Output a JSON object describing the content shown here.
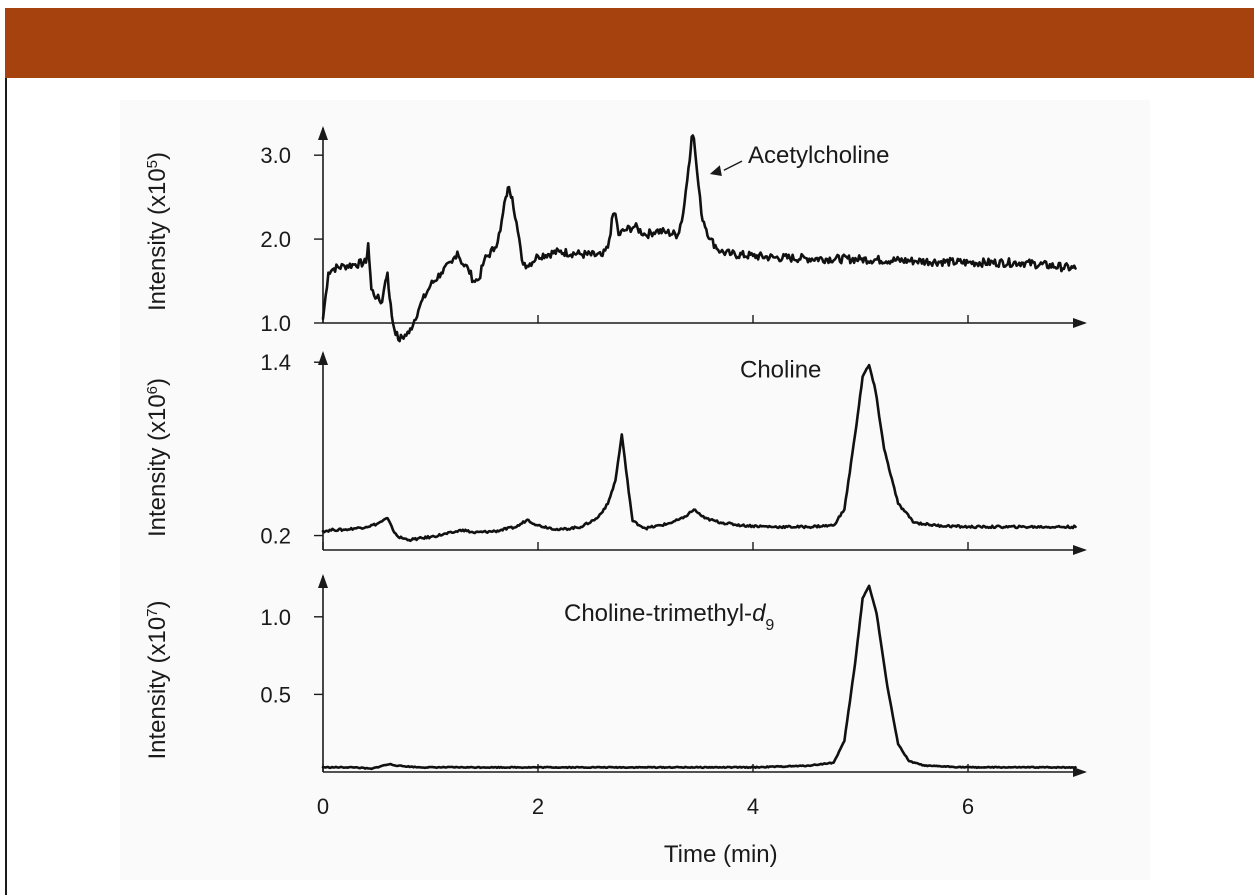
{
  "colors": {
    "header_bar": "#a5420e",
    "trace": "#111111"
  },
  "chart_data": [
    {
      "type": "line",
      "title": "",
      "xlabel": "",
      "ylabel_text": "Intensity (x10",
      "ylabel_exp": "5",
      "ylabel_close": ")",
      "xlim": [
        0,
        7
      ],
      "ylim": [
        1.0,
        3.3
      ],
      "yticks": [
        1.0,
        2.0,
        3.0
      ],
      "ytick_labels": [
        "1.0",
        "2.0",
        "3.0"
      ],
      "annotation": {
        "text": "Acetylcholine",
        "x": 3.45,
        "y": 3.25
      },
      "series": [
        {
          "x": [
            0,
            0.05,
            0.1,
            0.2,
            0.3,
            0.4,
            0.42,
            0.45,
            0.5,
            0.55,
            0.58,
            0.6,
            0.62,
            0.65,
            0.7,
            0.8,
            0.9,
            1.0,
            1.1,
            1.2,
            1.25,
            1.3,
            1.35,
            1.4,
            1.45,
            1.5,
            1.6,
            1.65,
            1.7,
            1.73,
            1.76,
            1.8,
            1.85,
            1.9,
            2.0,
            2.2,
            2.4,
            2.6,
            2.65,
            2.7,
            2.72,
            2.75,
            2.8,
            2.9,
            3.0,
            3.1,
            3.2,
            3.3,
            3.35,
            3.4,
            3.43,
            3.45,
            3.48,
            3.52,
            3.6,
            3.7,
            3.8,
            4.0,
            4.2,
            4.5,
            5.0,
            5.5,
            6.0,
            6.5,
            7.0
          ],
          "y": [
            1.05,
            1.6,
            1.65,
            1.68,
            1.7,
            1.72,
            1.95,
            1.4,
            1.3,
            1.25,
            1.5,
            1.6,
            1.3,
            1.0,
            0.8,
            0.88,
            1.2,
            1.45,
            1.6,
            1.72,
            1.85,
            1.7,
            1.65,
            1.5,
            1.52,
            1.75,
            1.9,
            2.1,
            2.5,
            2.62,
            2.5,
            2.2,
            1.75,
            1.68,
            1.8,
            1.85,
            1.82,
            1.8,
            1.9,
            2.3,
            2.3,
            2.05,
            2.1,
            2.15,
            2.05,
            2.1,
            2.08,
            2.05,
            2.3,
            2.85,
            3.22,
            3.2,
            2.8,
            2.3,
            2.0,
            1.85,
            1.82,
            1.8,
            1.78,
            1.77,
            1.76,
            1.74,
            1.72,
            1.72,
            1.65
          ]
        }
      ]
    },
    {
      "type": "line",
      "title": "",
      "xlabel": "",
      "ylabel_text": "Intensity (x10",
      "ylabel_exp": "6",
      "ylabel_close": ")",
      "xlim": [
        0,
        7
      ],
      "ylim": [
        0.1,
        1.45
      ],
      "yticks": [
        0.2,
        1.4
      ],
      "ytick_labels": [
        "0.2",
        "1.4"
      ],
      "annotation": {
        "text": "Choline",
        "x": 3.85,
        "y": 1.35
      },
      "series": [
        {
          "x": [
            0,
            0.1,
            0.2,
            0.3,
            0.4,
            0.5,
            0.6,
            0.65,
            0.7,
            0.8,
            1.0,
            1.2,
            1.3,
            1.4,
            1.6,
            1.8,
            1.9,
            2.0,
            2.2,
            2.4,
            2.55,
            2.65,
            2.72,
            2.78,
            2.82,
            2.88,
            3.0,
            3.2,
            3.35,
            3.45,
            3.55,
            3.7,
            3.9,
            4.2,
            4.5,
            4.75,
            4.85,
            4.95,
            5.02,
            5.08,
            5.14,
            5.22,
            5.35,
            5.5,
            5.7,
            6.0,
            6.5,
            7.0
          ],
          "y": [
            0.23,
            0.24,
            0.24,
            0.25,
            0.26,
            0.28,
            0.32,
            0.24,
            0.19,
            0.17,
            0.19,
            0.22,
            0.24,
            0.22,
            0.23,
            0.26,
            0.31,
            0.27,
            0.24,
            0.26,
            0.32,
            0.42,
            0.58,
            0.9,
            0.65,
            0.3,
            0.25,
            0.28,
            0.32,
            0.38,
            0.32,
            0.29,
            0.27,
            0.26,
            0.26,
            0.27,
            0.38,
            0.9,
            1.3,
            1.38,
            1.2,
            0.8,
            0.42,
            0.29,
            0.27,
            0.26,
            0.26,
            0.26
          ]
        }
      ]
    },
    {
      "type": "line",
      "title": "",
      "xlabel": "Time (min)",
      "ylabel_text": "Intensity (x10",
      "ylabel_exp": "7",
      "ylabel_close": ")",
      "xlim": [
        0,
        7
      ],
      "ylim": [
        0,
        1.25
      ],
      "yticks": [
        0.5,
        1.0
      ],
      "ytick_labels": [
        "0.5",
        "1.0"
      ],
      "xticks": [
        0,
        2,
        4,
        6
      ],
      "xtick_labels": [
        "0",
        "2",
        "4",
        "6"
      ],
      "annotation": {
        "text": "Choline-trimethyl-",
        "sub_main": "d",
        "sub_index": "9",
        "x": 4.5,
        "y": 1.03
      },
      "series": [
        {
          "x": [
            0,
            0.3,
            0.45,
            0.55,
            0.62,
            0.7,
            0.9,
            1.5,
            2.0,
            2.5,
            3.0,
            3.5,
            4.0,
            4.5,
            4.75,
            4.85,
            4.95,
            5.02,
            5.08,
            5.15,
            5.25,
            5.35,
            5.45,
            5.6,
            6.0,
            6.5,
            7.0
          ],
          "y": [
            0.03,
            0.03,
            0.02,
            0.04,
            0.05,
            0.04,
            0.03,
            0.03,
            0.03,
            0.03,
            0.03,
            0.03,
            0.03,
            0.04,
            0.06,
            0.2,
            0.7,
            1.12,
            1.2,
            1.02,
            0.55,
            0.18,
            0.07,
            0.04,
            0.03,
            0.03,
            0.03
          ]
        }
      ]
    }
  ]
}
